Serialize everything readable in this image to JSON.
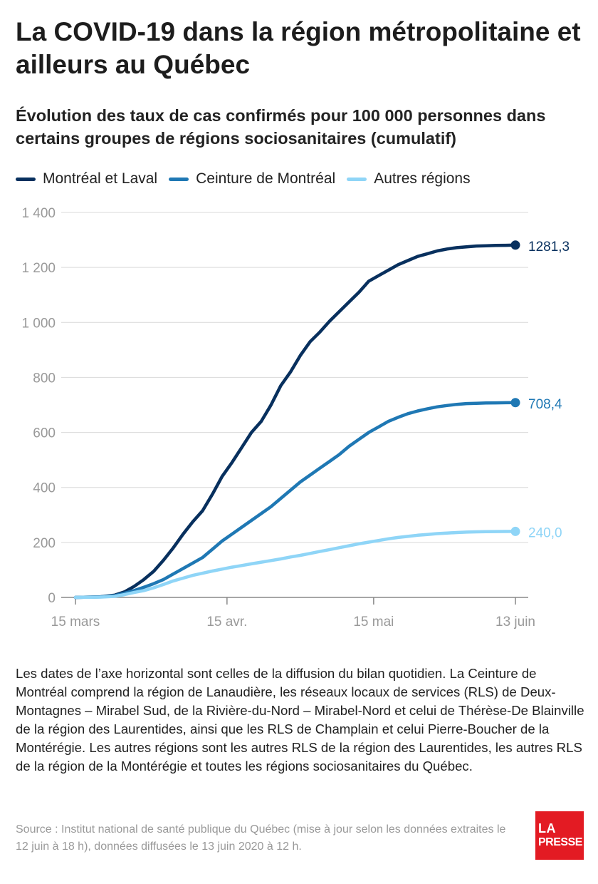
{
  "title": "La COVID-19 dans la région métropolitaine et ailleurs au Québec",
  "subtitle": "Évolution des taux de cas confirmés pour 100 000 personnes dans certains groupes de régions sociosanitaires (cumulatif)",
  "legend": [
    {
      "label": "Montréal et Laval",
      "color": "#08305e"
    },
    {
      "label": "Ceinture de Montréal",
      "color": "#1f78b4"
    },
    {
      "label": "Autres régions",
      "color": "#8fd5f7"
    }
  ],
  "chart_data": {
    "type": "line",
    "x_unit": "days since 15 mars 2020",
    "xlim": [
      0,
      90
    ],
    "ylim": [
      0,
      1400
    ],
    "y_ticks": [
      0,
      200,
      400,
      600,
      800,
      1000,
      1200,
      1400
    ],
    "y_tick_labels": [
      "0",
      "200",
      "400",
      "600",
      "800",
      "1 000",
      "1 200",
      "1 400"
    ],
    "x_ticks": [
      0,
      31,
      61,
      90
    ],
    "x_tick_labels": [
      "15 mars",
      "15 avr.",
      "15 mai",
      "13 juin"
    ],
    "grid": true,
    "series": [
      {
        "name": "Montréal et Laval",
        "color": "#08305e",
        "x": [
          0,
          5,
          8,
          10,
          12,
          14,
          16,
          18,
          20,
          22,
          24,
          26,
          28,
          30,
          32,
          34,
          36,
          38,
          40,
          42,
          44,
          46,
          48,
          50,
          52,
          54,
          56,
          58,
          60,
          62,
          64,
          66,
          68,
          70,
          72,
          74,
          76,
          78,
          80,
          82,
          84,
          86,
          88,
          90
        ],
        "y": [
          0,
          2,
          8,
          20,
          40,
          65,
          95,
          135,
          180,
          230,
          275,
          315,
          375,
          440,
          490,
          545,
          600,
          640,
          700,
          770,
          820,
          880,
          930,
          965,
          1005,
          1040,
          1075,
          1110,
          1150,
          1170,
          1190,
          1210,
          1225,
          1240,
          1250,
          1260,
          1267,
          1272,
          1275,
          1278,
          1279,
          1280,
          1280.5,
          1281.3
        ]
      },
      {
        "name": "Ceinture de Montréal",
        "color": "#1f78b4",
        "x": [
          0,
          5,
          8,
          10,
          12,
          14,
          16,
          18,
          20,
          22,
          24,
          26,
          28,
          30,
          32,
          34,
          36,
          38,
          40,
          42,
          44,
          46,
          48,
          50,
          52,
          54,
          56,
          58,
          60,
          62,
          64,
          66,
          68,
          70,
          72,
          74,
          76,
          78,
          80,
          82,
          84,
          86,
          88,
          90
        ],
        "y": [
          0,
          2,
          6,
          15,
          25,
          37,
          50,
          65,
          85,
          105,
          125,
          145,
          175,
          205,
          230,
          255,
          280,
          305,
          330,
          360,
          390,
          420,
          445,
          470,
          495,
          520,
          550,
          575,
          600,
          620,
          640,
          655,
          668,
          678,
          686,
          693,
          698,
          702,
          705,
          706,
          707,
          707.5,
          708,
          708.4
        ]
      },
      {
        "name": "Autres régions",
        "color": "#8fd5f7",
        "x": [
          0,
          5,
          8,
          10,
          12,
          14,
          16,
          18,
          20,
          22,
          24,
          26,
          28,
          30,
          32,
          34,
          36,
          38,
          40,
          42,
          44,
          46,
          48,
          50,
          52,
          54,
          56,
          58,
          60,
          62,
          64,
          66,
          68,
          70,
          72,
          74,
          76,
          78,
          80,
          82,
          84,
          86,
          88,
          90
        ],
        "y": [
          0,
          1,
          4,
          10,
          18,
          25,
          35,
          47,
          60,
          70,
          80,
          88,
          96,
          103,
          110,
          116,
          122,
          128,
          134,
          140,
          147,
          153,
          160,
          167,
          174,
          181,
          188,
          195,
          201,
          207,
          213,
          218,
          222,
          226,
          229,
          232,
          234,
          236,
          237.5,
          238.5,
          239,
          239.5,
          239.8,
          240.0
        ]
      }
    ],
    "end_labels": [
      "1281,3",
      "708,4",
      "240,0"
    ]
  },
  "note": "Les dates de l’axe horizontal sont celles de la diffusion du bilan quotidien. La Ceinture de Montréal comprend la région de Lanaudière, les réseaux locaux de services (RLS) de Deux-Montagnes – Mirabel Sud, de la Rivière-du-Nord – Mirabel-Nord et celui de Thérèse-De Blainville de la région des Laurentides, ainsi que les RLS de Champlain et celui Pierre-Boucher de la Montérégie. Les autres régions sont les autres RLS de la région des Laurentides, les autres RLS de la région de la Montérégie et toutes les régions sociosanitaires du Québec.",
  "source": "Source : Institut national de santé publique du Québec (mise à jour selon les données extraites le 12 juin à 18 h), données diffusées le 13 juin 2020 à 12 h.",
  "logo": {
    "line1": "LA",
    "line2": "PRESSE",
    "color": "#e31b23"
  }
}
